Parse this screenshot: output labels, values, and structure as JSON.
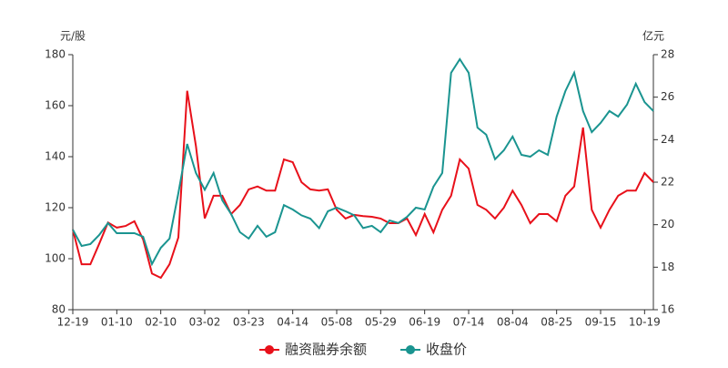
{
  "chart_data": {
    "type": "line",
    "y_label": "元/股",
    "y2_label": "亿元",
    "categories": [
      "12-19",
      null,
      null,
      null,
      null,
      "01-10",
      null,
      null,
      null,
      null,
      "02-10",
      null,
      null,
      null,
      null,
      "03-02",
      null,
      null,
      null,
      null,
      "03-23",
      null,
      null,
      null,
      null,
      "04-14",
      null,
      null,
      null,
      null,
      "05-08",
      null,
      null,
      null,
      null,
      "05-29",
      null,
      null,
      null,
      null,
      "06-19",
      null,
      null,
      null,
      null,
      "07-14",
      null,
      null,
      null,
      null,
      "08-04",
      null,
      null,
      null,
      null,
      "08-25",
      null,
      null,
      null,
      null,
      "09-15",
      null,
      null,
      null,
      null,
      "10-19",
      null
    ],
    "series": [
      {
        "name": "融资融券余额",
        "color": "#e8101a",
        "axis": "y2",
        "values": [
          19.77,
          18.14,
          18.14,
          19.1,
          20.1,
          19.86,
          19.94,
          20.16,
          19.3,
          17.7,
          17.5,
          18.14,
          19.4,
          26.3,
          23.7,
          20.3,
          21.36,
          21.36,
          20.5,
          20.93,
          21.66,
          21.8,
          21.6,
          21.6,
          23.07,
          22.94,
          22.0,
          21.66,
          21.6,
          21.66,
          20.7,
          20.29,
          20.46,
          20.4,
          20.37,
          20.29,
          20.07,
          20.07,
          20.29,
          19.51,
          20.5,
          19.64,
          20.7,
          21.36,
          23.07,
          22.64,
          20.93,
          20.7,
          20.29,
          20.8,
          21.6,
          20.93,
          20.07,
          20.5,
          20.5,
          20.16,
          21.36,
          21.8,
          24.57,
          20.7,
          19.86,
          20.7,
          21.36,
          21.6,
          21.6,
          22.43,
          22.0
        ]
      },
      {
        "name": "收盘价",
        "color": "#1a9490",
        "axis": "y",
        "values": [
          111.4,
          105,
          105.7,
          109.3,
          114,
          110,
          110,
          110,
          108.6,
          97.9,
          104.3,
          107.9,
          125.7,
          145,
          133.6,
          127,
          133.6,
          122.9,
          117.5,
          110.4,
          107.9,
          112.9,
          108.6,
          110.4,
          121,
          119.3,
          117,
          115.7,
          112,
          118.6,
          120,
          118.6,
          117,
          112,
          112.9,
          110.4,
          115,
          114,
          116.4,
          120,
          119.3,
          128.2,
          133.6,
          172.9,
          178.2,
          172.9,
          151.4,
          148.6,
          139,
          142.5,
          147.9,
          140.7,
          140,
          142.5,
          140.7,
          155.7,
          165.7,
          172.9,
          157.9,
          149.6,
          153.2,
          157.9,
          155.7,
          160.4,
          168.6,
          161.4,
          157.9
        ]
      }
    ],
    "ylim": [
      80,
      180
    ],
    "yticks": [
      80,
      100,
      120,
      140,
      160,
      180
    ],
    "y2lim": [
      16,
      28
    ],
    "y2ticks": [
      16,
      18,
      20,
      22,
      24,
      26,
      28
    ],
    "legend": "bottom"
  }
}
